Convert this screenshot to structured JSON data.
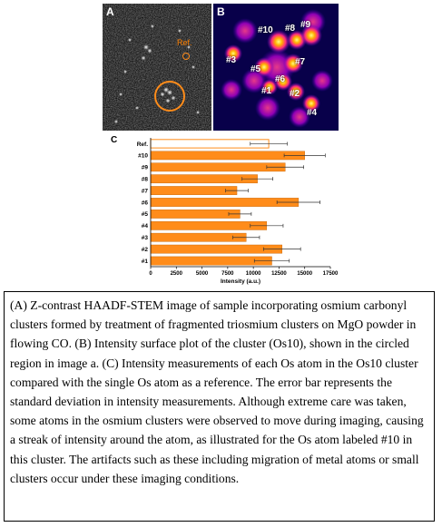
{
  "panel_a": {
    "letter": "A",
    "ref_label": "Ref."
  },
  "panel_b": {
    "letter": "B",
    "atom_labels": [
      "#10",
      "#8",
      "#9",
      "#3",
      "#5",
      "#7",
      "#6",
      "#1",
      "#2",
      "#4"
    ]
  },
  "panel_c": {
    "letter": "C"
  },
  "chart_data": {
    "type": "bar",
    "orientation": "horizontal",
    "categories": [
      "Ref.",
      "#10",
      "#9",
      "#8",
      "#7",
      "#6",
      "#5",
      "#4",
      "#3",
      "#2",
      "#1"
    ],
    "values": [
      11500,
      15000,
      13100,
      10400,
      8400,
      14400,
      8700,
      11300,
      9300,
      12800,
      11800
    ],
    "errors": [
      1800,
      2000,
      1800,
      1500,
      1100,
      2100,
      1100,
      1600,
      1300,
      1800,
      1700
    ],
    "xlabel": "Intensity (a.u.)",
    "ylabel": "",
    "xlim": [
      0,
      17500
    ],
    "xticks": [
      0,
      2500,
      5000,
      7500,
      10000,
      12500,
      15000,
      17500
    ],
    "bar_color": "#ff8c1a",
    "ref_bar_color": "#ffffff",
    "grid": false
  },
  "caption": {
    "text": "(A) Z-contrast HAADF-STEM image of sample incorporating osmium carbonyl clusters formed by treatment of fragmented triosmium clusters on MgO powder in flowing CO. (B) Intensity surface plot of the cluster (Os10), shown in the circled region in image a. (C) Intensity measurements of each Os atom in the Os10 cluster compared with the single Os atom as a reference. The error bar represents the standard deviation in intensity measurements. Although extreme care was taken, some atoms in the osmium clusters were observed to move during imaging, causing a streak of intensity around the atom, as illustrated for the Os atom labeled #10 in this cluster. The artifacts such as these including migration of metal atoms or small clusters occur under these imaging conditions."
  }
}
